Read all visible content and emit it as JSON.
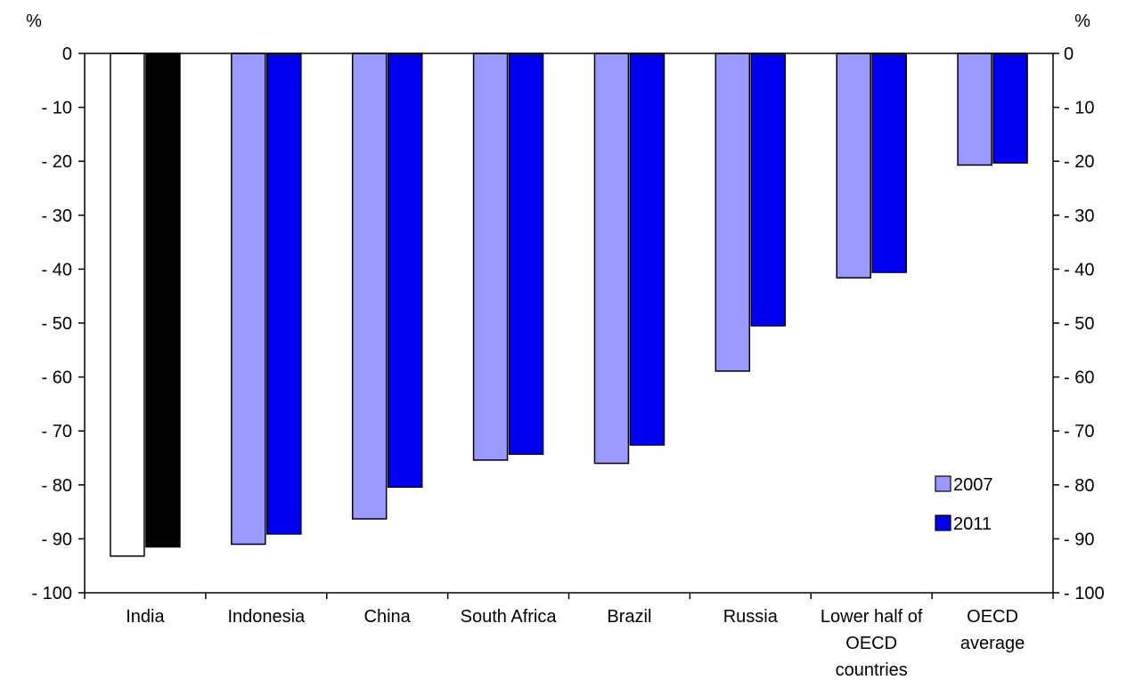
{
  "chart_data": {
    "type": "bar",
    "title": "",
    "y_unit_left": "%",
    "y_unit_right": "%",
    "ylim": [
      -100,
      0
    ],
    "y_ticks": [
      0,
      -10,
      -20,
      -30,
      -40,
      -50,
      -60,
      -70,
      -80,
      -90,
      -100
    ],
    "y_tick_labels": [
      "0",
      "- 10",
      "- 20",
      "- 30",
      "- 40",
      "- 50",
      "- 60",
      "- 70",
      "- 80",
      "- 90",
      "- 100"
    ],
    "categories": [
      [
        "India"
      ],
      [
        "Indonesia"
      ],
      [
        "China"
      ],
      [
        "South Africa"
      ],
      [
        "Brazil"
      ],
      [
        "Russia"
      ],
      [
        "Lower half of",
        "OECD",
        "countries"
      ],
      [
        "OECD",
        "average"
      ]
    ],
    "series": [
      {
        "name": "2007",
        "color": "#9999ff",
        "highlight_color": "#ffffff",
        "values": [
          -93.2,
          -91.0,
          -86.3,
          -75.4,
          -76.0,
          -58.9,
          -41.6,
          -20.7
        ]
      },
      {
        "name": "2011",
        "color": "#0000ee",
        "highlight_color": "#000000",
        "values": [
          -91.5,
          -89.1,
          -80.4,
          -74.3,
          -72.6,
          -50.5,
          -40.6,
          -20.3
        ]
      }
    ],
    "highlight_category_index": 0,
    "legend": {
      "placement": "bottom-right"
    },
    "grid": false
  }
}
